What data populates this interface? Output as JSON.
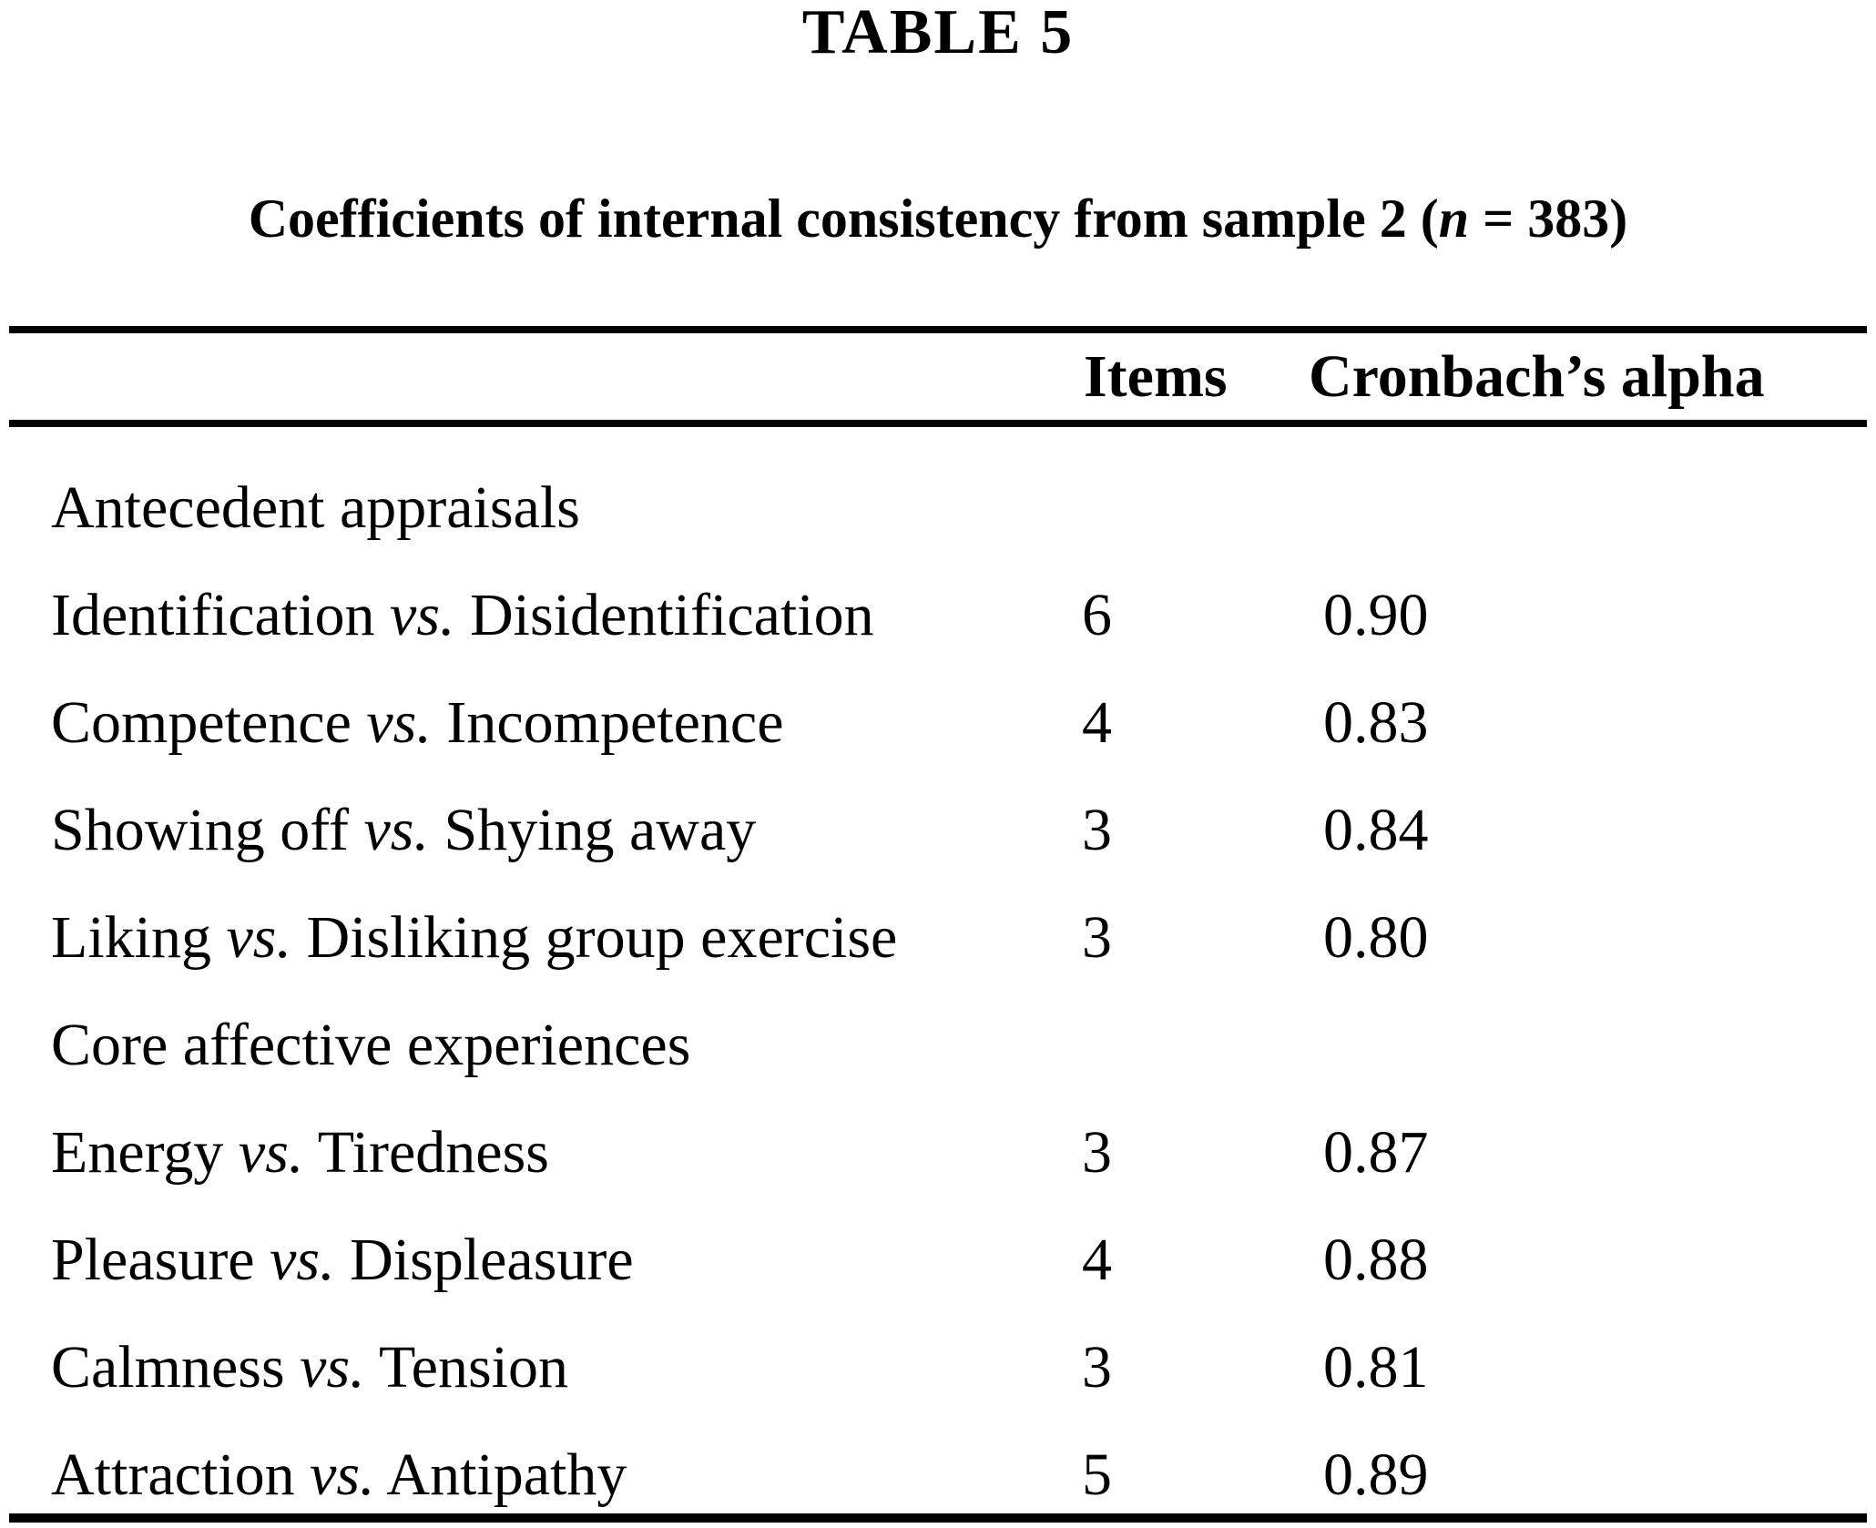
{
  "page": {
    "table_label": "TABLE 5",
    "title": {
      "pre": "Coefficients of internal consistency from sample 2 (",
      "var": "n",
      "post": " = 383)"
    }
  },
  "header": {
    "items": "Items",
    "alpha": "Cronbach’s alpha"
  },
  "rows": [
    {
      "kind": "section",
      "pre": "Antecedent appraisals",
      "vs": "",
      "post": "",
      "items": "",
      "alpha": ""
    },
    {
      "kind": "data",
      "pre": "Identification ",
      "vs": "vs.",
      "post": " Disidentification",
      "items": "6",
      "alpha": "0.90"
    },
    {
      "kind": "data",
      "pre": "Competence ",
      "vs": "vs.",
      "post": " Incompetence",
      "items": "4",
      "alpha": "0.83"
    },
    {
      "kind": "data",
      "pre": "Showing off ",
      "vs": "vs.",
      "post": " Shying away",
      "items": "3",
      "alpha": "0.84"
    },
    {
      "kind": "data",
      "pre": "Liking ",
      "vs": "vs.",
      "post": " Disliking group exercise",
      "items": "3",
      "alpha": "0.80"
    },
    {
      "kind": "section",
      "pre": "Core affective experiences",
      "vs": "",
      "post": "",
      "items": "",
      "alpha": ""
    },
    {
      "kind": "data",
      "pre": "Energy ",
      "vs": "vs.",
      "post": " Tiredness",
      "items": "3",
      "alpha": "0.87"
    },
    {
      "kind": "data",
      "pre": "Pleasure ",
      "vs": "vs.",
      "post": " Displeasure",
      "items": "4",
      "alpha": "0.88"
    },
    {
      "kind": "data",
      "pre": "Calmness ",
      "vs": "vs.",
      "post": " Tension",
      "items": "3",
      "alpha": "0.81"
    },
    {
      "kind": "data",
      "pre": "Attraction ",
      "vs": "vs.",
      "post": " Antipathy",
      "items": "5",
      "alpha": "0.89"
    }
  ]
}
